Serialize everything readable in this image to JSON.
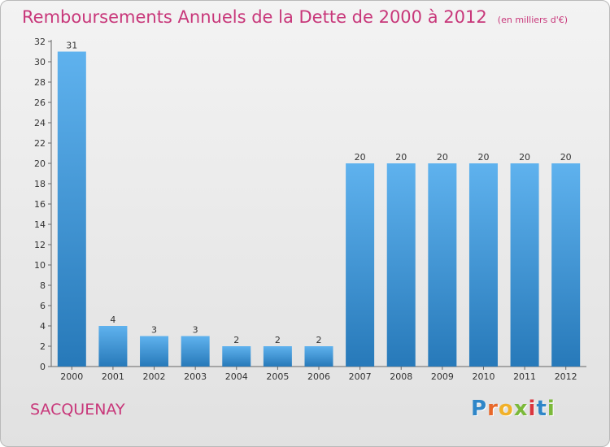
{
  "chart_data": {
    "type": "bar",
    "title": "Remboursements Annuels de la Dette de 2000 à 2012",
    "unit_note": "(en milliers d'€)",
    "categories": [
      "2000",
      "2001",
      "2002",
      "2003",
      "2004",
      "2005",
      "2006",
      "2007",
      "2008",
      "2009",
      "2010",
      "2011",
      "2012"
    ],
    "values": [
      31,
      4,
      3,
      3,
      2,
      2,
      2,
      20,
      20,
      20,
      20,
      20,
      20
    ],
    "ylim": [
      0,
      32
    ],
    "yticks": [
      0,
      2,
      4,
      6,
      8,
      10,
      12,
      14,
      16,
      18,
      20,
      22,
      24,
      26,
      28,
      30,
      32
    ],
    "xlabel": "",
    "ylabel": "",
    "grid": false,
    "colors": {
      "bar_top": "#5fb2ee",
      "bar_bottom": "#2779b9",
      "text": "#333333",
      "title": "#c8377a"
    }
  },
  "commune_name": "SACQUENAY",
  "logo": {
    "letters": [
      "P",
      "r",
      "o",
      "x",
      "i",
      "t",
      "i"
    ],
    "colors": [
      "#2e86c8",
      "#e8682a",
      "#f1b12a",
      "#7bb93a",
      "#d9363e",
      "#2e86c8",
      "#7bb93a"
    ]
  }
}
